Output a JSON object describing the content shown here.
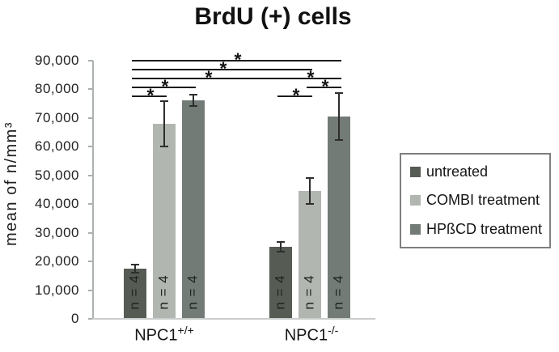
{
  "title": "BrdU (+) cells",
  "y_axis": {
    "label": "mean of n/mm³",
    "ticks": [
      "90,000",
      "80,000",
      "70,000",
      "60,000",
      "50,000",
      "40,000",
      "30,000",
      "20,000",
      "10,000",
      "0"
    ]
  },
  "x_axis": {
    "groups": [
      {
        "name": "NPC1",
        "sup": "+/+"
      },
      {
        "name": "NPC1",
        "sup": "-/-"
      }
    ]
  },
  "bars": {
    "n_label": "n = 4"
  },
  "legend": {
    "items": [
      {
        "label": "untreated",
        "color": "#565b54"
      },
      {
        "label": "COMBI treatment",
        "color": "#b2b6b0"
      },
      {
        "label": "HPßCD treatment",
        "color": "#727b75"
      }
    ]
  },
  "colors": {
    "axis": "#adb2b1",
    "baseline": "#c9cdcc",
    "error_bar": "#2e2e2e",
    "significance_line": "#1c1c1c",
    "text": "#1a1a1a"
  },
  "chart_data": {
    "type": "bar",
    "title": "BrdU (+) cells",
    "xlabel": "",
    "ylabel": "mean of n/mm³",
    "ylim": [
      0,
      90000
    ],
    "ytick_step": 10000,
    "grid": false,
    "legend_position": "right",
    "categories": [
      "NPC1+/+",
      "NPC1-/-"
    ],
    "series": [
      {
        "name": "untreated",
        "color": "#565b54",
        "values": [
          17500,
          25100
        ],
        "errors": [
          1500,
          1700
        ]
      },
      {
        "name": "COMBI treatment",
        "color": "#b2b6b0",
        "values": [
          68000,
          44600
        ],
        "errors": [
          7900,
          4500
        ]
      },
      {
        "name": "HPßCD treatment",
        "color": "#727b75",
        "values": [
          76200,
          70500
        ],
        "errors": [
          2000,
          8100
        ]
      }
    ],
    "n_per_bar": 4,
    "significance": [
      {
        "from": [
          0,
          0
        ],
        "to": [
          1,
          2
        ],
        "level": 0,
        "marker": "*"
      },
      {
        "from": [
          0,
          0
        ],
        "to": [
          1,
          1
        ],
        "level": 1,
        "marker": "*"
      },
      {
        "from": [
          0,
          0
        ],
        "to": [
          1,
          0
        ],
        "level": 2,
        "marker": "*"
      },
      {
        "from": [
          1,
          0
        ],
        "to": [
          1,
          2
        ],
        "level": 2,
        "marker": "*"
      },
      {
        "from": [
          0,
          0
        ],
        "to": [
          0,
          2
        ],
        "level": 3,
        "marker": "*"
      },
      {
        "from": [
          1,
          1
        ],
        "to": [
          1,
          2
        ],
        "level": 3,
        "marker": "*"
      },
      {
        "from": [
          0,
          0
        ],
        "to": [
          0,
          1
        ],
        "level": 4,
        "marker": "*"
      },
      {
        "from": [
          1,
          0
        ],
        "to": [
          1,
          1
        ],
        "level": 4,
        "marker": "*"
      }
    ]
  }
}
